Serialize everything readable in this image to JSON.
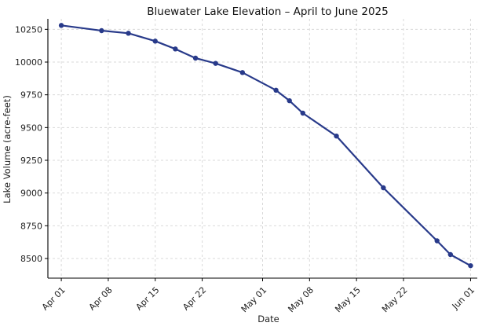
{
  "chart_data": {
    "type": "line",
    "title": "Bluewater Lake Elevation – April to June 2025",
    "xlabel": "Date",
    "ylabel": "Lake Volume (acre-feet)",
    "x_axis": {
      "scale": "date",
      "range": [
        "2025-03-30",
        "2025-06-02"
      ],
      "ticks": [
        "2025-04-01",
        "2025-04-08",
        "2025-04-15",
        "2025-04-22",
        "2025-05-01",
        "2025-05-08",
        "2025-05-15",
        "2025-05-22",
        "2025-06-01"
      ],
      "tick_labels": [
        "Apr 01",
        "Apr 08",
        "Apr 15",
        "Apr 22",
        "May 01",
        "May 08",
        "May 15",
        "May 22",
        "Jun 01"
      ]
    },
    "y_axis": {
      "range": [
        8350,
        10330
      ],
      "ticks": [
        8500,
        8750,
        9000,
        9250,
        9500,
        9750,
        10000,
        10250
      ],
      "tick_labels": [
        "8500",
        "8750",
        "9000",
        "9250",
        "9500",
        "9750",
        "10000",
        "10250"
      ]
    },
    "grid": true,
    "colors": {
      "line": "#283a8a",
      "marker": "#283a8a"
    },
    "series": [
      {
        "x": [
          "2025-04-01",
          "2025-04-07",
          "2025-04-11",
          "2025-04-15",
          "2025-04-18",
          "2025-04-21",
          "2025-04-24",
          "2025-04-28",
          "2025-05-03",
          "2025-05-05",
          "2025-05-07",
          "2025-05-12",
          "2025-05-19",
          "2025-05-27",
          "2025-05-29",
          "2025-06-01"
        ],
        "y": [
          10280,
          10240,
          10220,
          10160,
          10100,
          10030,
          9990,
          9920,
          9785,
          9705,
          9610,
          9435,
          9040,
          8635,
          8530,
          8445
        ]
      }
    ]
  }
}
